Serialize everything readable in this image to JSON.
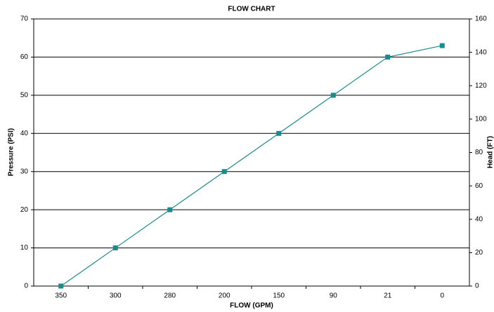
{
  "chart_data": {
    "type": "line",
    "title": "FLOW CHART",
    "x_label": "FLOW (GPM)",
    "y_label": "Pressure (PSI)",
    "y2_label": "Head (FT)",
    "categories": [
      "350",
      "300",
      "280",
      "200",
      "150",
      "90",
      "21",
      "0"
    ],
    "series": [
      {
        "color": "#1a8a8c",
        "values": [
          0,
          10,
          20,
          30,
          40,
          50,
          60,
          63
        ]
      }
    ],
    "ylim": [
      0,
      70
    ],
    "yticks": [
      0,
      10,
      20,
      30,
      40,
      50,
      60,
      70
    ],
    "y2lim": [
      0,
      160
    ],
    "y2ticks": [
      0,
      20,
      40,
      60,
      80,
      100,
      120,
      140,
      160
    ],
    "grid": true
  }
}
